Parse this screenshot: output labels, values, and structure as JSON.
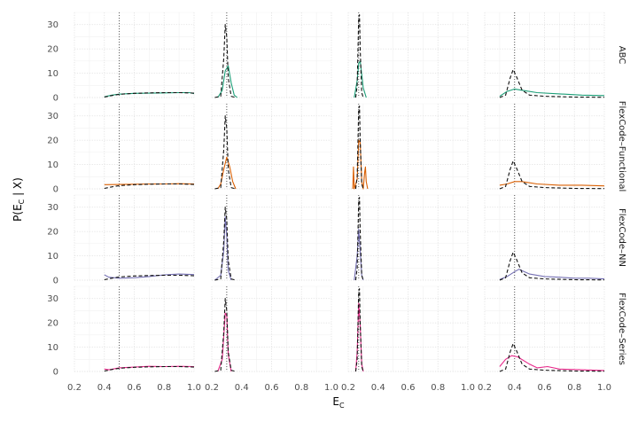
{
  "chart_data": {
    "type": "line",
    "xlabel": "E",
    "xlabel_sub": "C",
    "ylabel_pre": "P(E",
    "ylabel_sub": "C",
    "ylabel_post": " | X)",
    "xlim": [
      0.2,
      1.0
    ],
    "ylim": [
      0,
      35
    ],
    "xticks": [
      0.2,
      0.4,
      0.6,
      0.8,
      1.0
    ],
    "xtick_labels": [
      "0.2",
      "0.4",
      "0.6",
      "0.8",
      "1.0"
    ],
    "yticks": [
      0,
      10,
      20,
      30
    ],
    "grid": true,
    "rows": [
      "ABC",
      "FlexCode–Functional",
      "FlexCode–NN",
      "FlexCode–Series"
    ],
    "row_colors": [
      "#1b9e77",
      "#d95f02",
      "#7570b3",
      "#e7298a"
    ],
    "reference_lines": [
      0.5,
      0.3,
      0.27,
      0.4
    ],
    "true_posteriors": [
      [
        [
          0.4,
          0.2
        ],
        [
          0.45,
          0.8
        ],
        [
          0.5,
          1.3
        ],
        [
          0.6,
          1.7
        ],
        [
          0.7,
          1.9
        ],
        [
          0.8,
          2.0
        ],
        [
          0.9,
          2.0
        ],
        [
          0.97,
          1.9
        ],
        [
          1.0,
          1.8
        ]
      ],
      [
        [
          0.22,
          0
        ],
        [
          0.26,
          0.5
        ],
        [
          0.28,
          16
        ],
        [
          0.29,
          30
        ],
        [
          0.3,
          25
        ],
        [
          0.31,
          8
        ],
        [
          0.33,
          0.5
        ],
        [
          0.36,
          0
        ]
      ],
      [
        [
          0.25,
          0
        ],
        [
          0.26,
          5
        ],
        [
          0.27,
          33
        ],
        [
          0.275,
          34
        ],
        [
          0.28,
          20
        ],
        [
          0.29,
          2
        ],
        [
          0.3,
          0
        ]
      ],
      [
        [
          0.3,
          0
        ],
        [
          0.34,
          1
        ],
        [
          0.37,
          8
        ],
        [
          0.39,
          11.5
        ],
        [
          0.41,
          9
        ],
        [
          0.45,
          3
        ],
        [
          0.5,
          1
        ],
        [
          0.6,
          0.5
        ],
        [
          0.8,
          0.2
        ],
        [
          1.0,
          0.1
        ]
      ]
    ],
    "series": [
      {
        "name": "ABC",
        "panels": [
          [
            [
              0.4,
              0.3
            ],
            [
              0.45,
              1.0
            ],
            [
              0.5,
              1.4
            ],
            [
              0.6,
              1.7
            ],
            [
              0.7,
              1.8
            ],
            [
              0.8,
              1.9
            ],
            [
              0.9,
              2.0
            ],
            [
              0.97,
              2.0
            ],
            [
              1.0,
              1.6
            ]
          ],
          [
            [
              0.24,
              0
            ],
            [
              0.27,
              3
            ],
            [
              0.29,
              11
            ],
            [
              0.31,
              13
            ],
            [
              0.33,
              6
            ],
            [
              0.35,
              1
            ],
            [
              0.37,
              0
            ]
          ],
          [
            [
              0.24,
              0
            ],
            [
              0.26,
              7
            ],
            [
              0.27,
              14
            ],
            [
              0.28,
              15
            ],
            [
              0.3,
              4
            ],
            [
              0.32,
              0
            ]
          ],
          [
            [
              0.3,
              0.5
            ],
            [
              0.35,
              2.5
            ],
            [
              0.4,
              3.5
            ],
            [
              0.45,
              3
            ],
            [
              0.55,
              2
            ],
            [
              0.7,
              1.5
            ],
            [
              0.85,
              1
            ],
            [
              1.0,
              0.8
            ]
          ]
        ]
      },
      {
        "name": "FlexCode–Functional",
        "panels": [
          [
            [
              0.4,
              1.7
            ],
            [
              0.5,
              1.8
            ],
            [
              0.6,
              1.9
            ],
            [
              0.7,
              2.0
            ],
            [
              0.8,
              2.0
            ],
            [
              0.9,
              2.1
            ],
            [
              1.0,
              2.0
            ]
          ],
          [
            [
              0.24,
              0
            ],
            [
              0.26,
              2
            ],
            [
              0.28,
              8
            ],
            [
              0.3,
              13
            ],
            [
              0.32,
              9
            ],
            [
              0.34,
              3
            ],
            [
              0.36,
              0
            ]
          ],
          [
            [
              0.23,
              0
            ],
            [
              0.235,
              9
            ],
            [
              0.24,
              0
            ],
            [
              0.26,
              4
            ],
            [
              0.27,
              20
            ],
            [
              0.28,
              19
            ],
            [
              0.29,
              3
            ],
            [
              0.3,
              0
            ],
            [
              0.31,
              7
            ],
            [
              0.315,
              9
            ],
            [
              0.32,
              3
            ],
            [
              0.33,
              0
            ]
          ],
          [
            [
              0.3,
              1.5
            ],
            [
              0.35,
              2
            ],
            [
              0.4,
              3
            ],
            [
              0.45,
              3
            ],
            [
              0.55,
              2
            ],
            [
              0.7,
              1.5
            ],
            [
              0.85,
              1.5
            ],
            [
              1.0,
              1.2
            ]
          ]
        ]
      },
      {
        "name": "FlexCode–NN",
        "panels": [
          [
            [
              0.4,
              2.2
            ],
            [
              0.43,
              1.2
            ],
            [
              0.5,
              0.8
            ],
            [
              0.6,
              1.0
            ],
            [
              0.7,
              1.5
            ],
            [
              0.8,
              2.2
            ],
            [
              0.9,
              2.5
            ],
            [
              1.0,
              2.3
            ]
          ],
          [
            [
              0.22,
              0
            ],
            [
              0.26,
              2
            ],
            [
              0.28,
              12
            ],
            [
              0.29,
              26
            ],
            [
              0.3,
              18
            ],
            [
              0.31,
              4
            ],
            [
              0.33,
              0
            ]
          ],
          [
            [
              0.24,
              0
            ],
            [
              0.26,
              10
            ],
            [
              0.27,
              21
            ],
            [
              0.28,
              12
            ],
            [
              0.29,
              2
            ],
            [
              0.3,
              0
            ]
          ],
          [
            [
              0.3,
              0.3
            ],
            [
              0.35,
              1.5
            ],
            [
              0.4,
              3.5
            ],
            [
              0.43,
              4.5
            ],
            [
              0.5,
              2.5
            ],
            [
              0.6,
              1.5
            ],
            [
              0.7,
              1.2
            ],
            [
              0.8,
              0.8
            ],
            [
              0.9,
              0.8
            ],
            [
              1.0,
              0.5
            ]
          ]
        ]
      },
      {
        "name": "FlexCode–Series",
        "panels": [
          [
            [
              0.4,
              1.0
            ],
            [
              0.43,
              0.7
            ],
            [
              0.5,
              1.5
            ],
            [
              0.6,
              1.8
            ],
            [
              0.7,
              2.1
            ],
            [
              0.8,
              2.0
            ],
            [
              0.9,
              2.1
            ],
            [
              1.0,
              2.0
            ]
          ],
          [
            [
              0.24,
              0
            ],
            [
              0.27,
              5
            ],
            [
              0.29,
              24
            ],
            [
              0.3,
              23
            ],
            [
              0.31,
              7
            ],
            [
              0.33,
              0
            ]
          ],
          [
            [
              0.25,
              0
            ],
            [
              0.26,
              8
            ],
            [
              0.27,
              28
            ],
            [
              0.28,
              19
            ],
            [
              0.29,
              3
            ],
            [
              0.3,
              0
            ]
          ],
          [
            [
              0.3,
              2
            ],
            [
              0.34,
              5
            ],
            [
              0.38,
              6.5
            ],
            [
              0.42,
              6
            ],
            [
              0.5,
              3
            ],
            [
              0.55,
              1.5
            ],
            [
              0.62,
              2
            ],
            [
              0.7,
              1
            ],
            [
              0.8,
              0.8
            ],
            [
              1.0,
              0.4
            ]
          ]
        ]
      }
    ]
  }
}
